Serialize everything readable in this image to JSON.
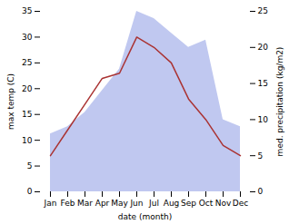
{
  "chart_data": {
    "type": "line",
    "xlabel": "date (month)",
    "ylabel": "max temp (C)",
    "y2label": "med. precipitation (kg/m2)",
    "categories": [
      "Jan",
      "Feb",
      "Mar",
      "Apr",
      "May",
      "Jun",
      "Jul",
      "Aug",
      "Sep",
      "Oct",
      "Nov",
      "Dec"
    ],
    "series": [
      {
        "type": "area",
        "axis": "y2",
        "color": "#c0c8f0",
        "values": [
          8,
          9,
          11,
          14,
          17,
          25,
          24,
          22,
          20,
          21,
          10,
          9
        ]
      },
      {
        "type": "line",
        "color": "#aa3333",
        "values": [
          7,
          12,
          17,
          22,
          23,
          30,
          28,
          25,
          18,
          14,
          9,
          7
        ]
      }
    ],
    "ylim": [
      0,
      35
    ],
    "yticks": [
      0,
      5,
      10,
      15,
      20,
      25,
      30,
      35
    ],
    "y2lim": [
      0,
      25
    ],
    "y2ticks": [
      0,
      5,
      10,
      15,
      20,
      25
    ]
  }
}
